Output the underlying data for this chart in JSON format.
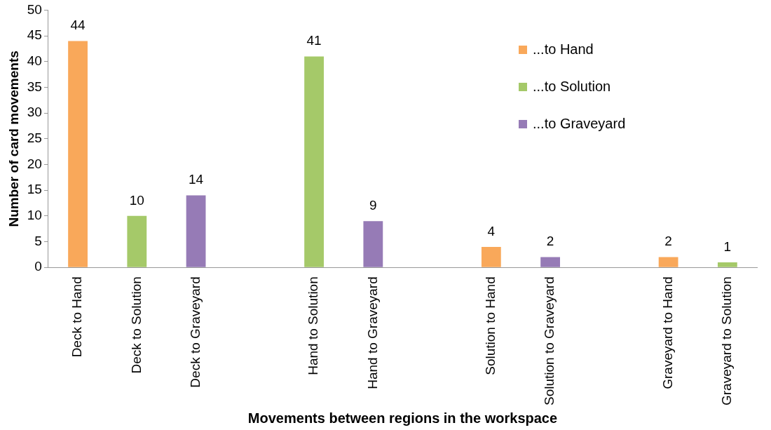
{
  "chart_data": {
    "type": "bar",
    "xlabel": "Movements between regions in the workspace",
    "ylabel": "Number of card movements",
    "categories": [
      "Deck to Hand",
      "Deck to Solution",
      "Deck to Graveyard",
      null,
      "Hand to Solution",
      "Hand to Graveyard",
      null,
      "Solution to Hand",
      "Solution to Graveyard",
      null,
      "Graveyard to Hand",
      "Graveyard to Solution"
    ],
    "series": [
      {
        "name": "...to Hand",
        "color": "#f9a85a",
        "values": [
          44,
          null,
          null,
          null,
          null,
          null,
          null,
          4,
          null,
          null,
          2,
          null
        ]
      },
      {
        "name": "...to Solution",
        "color": "#a5c969",
        "values": [
          null,
          10,
          null,
          null,
          41,
          null,
          null,
          null,
          null,
          null,
          null,
          1
        ]
      },
      {
        "name": "...to Graveyard",
        "color": "#967bb6",
        "values": [
          null,
          null,
          14,
          null,
          null,
          9,
          null,
          null,
          2,
          null,
          null,
          null
        ]
      }
    ],
    "ylim": [
      0,
      50
    ],
    "yticks": [
      0,
      5,
      10,
      15,
      20,
      25,
      30,
      35,
      40,
      45,
      50
    ],
    "grid": false,
    "legend": "top right",
    "data_labels": true
  }
}
